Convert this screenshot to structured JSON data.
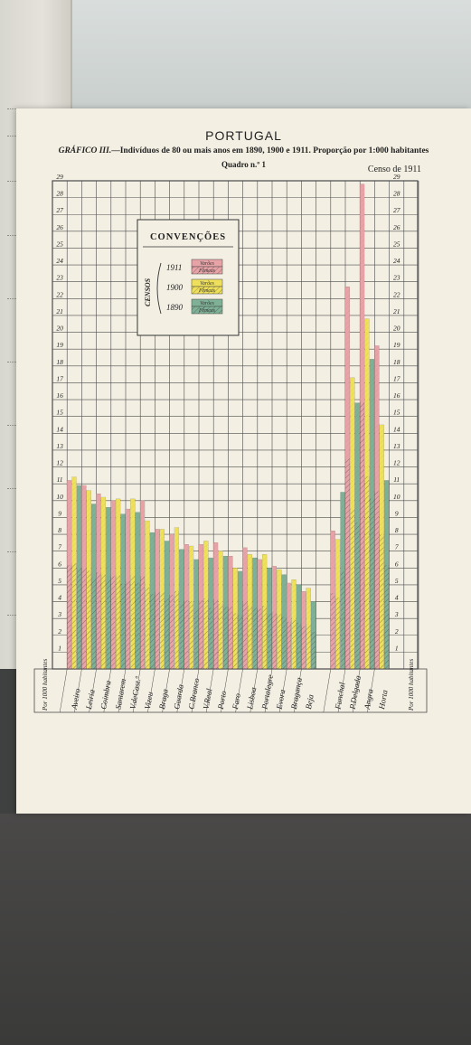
{
  "page": {
    "title": "PORTUGAL",
    "subtitle_prefix": "GRÁFICO III.",
    "subtitle_text": "—Indivíduos de 80 ou mais anos em 1890, 1900 e 1911. Proporção por 1:000 habitantes",
    "quadro": "Quadro n.º 1",
    "censo": "Censo de 1911"
  },
  "colors": {
    "c1911": "#e8a3a7",
    "c1900": "#eee05a",
    "c1890": "#7fb197",
    "grid": "#4c4c4c",
    "paper": "#f3efe3"
  },
  "chart_data": {
    "type": "bar",
    "ylim": [
      0,
      29
    ],
    "y_ticks": [
      "1",
      "2",
      "3",
      "4",
      "5",
      "6",
      "7",
      "8",
      "9",
      "10",
      "11",
      "12",
      "13",
      "14",
      "15",
      "16",
      "17",
      "18",
      "19",
      "20",
      "21",
      "22",
      "23",
      "24",
      "25",
      "26",
      "27",
      "28",
      "29"
    ],
    "left_axis_label": "Por 1000 habitantes",
    "right_axis_label": "Por 1000 habitantes",
    "legend": {
      "title": "CONVENÇÕES",
      "group_label": "CENSOS",
      "entries": [
        {
          "year": "1911",
          "line1": "Varões",
          "line2": "Fêmeas"
        },
        {
          "year": "1900",
          "line1": "Varões",
          "line2": "Fêmeas"
        },
        {
          "year": "1890",
          "line1": "Varões",
          "line2": "Fêmeas"
        }
      ]
    },
    "categories": [
      "Aveiro",
      "Leiria",
      "Coimbra",
      "Santarem",
      "V.deCast.º",
      "Vizeu",
      "Braga",
      "Guarda",
      "C.Branco",
      "V.Real",
      "Porto",
      "Faro",
      "Lisboa",
      "Portalegre",
      "Evora",
      "Bragança",
      "Beja",
      "Funchal",
      "P.Delgada",
      "Angra",
      "Horta"
    ],
    "series": [
      {
        "name": "1911",
        "values": [
          11.2,
          10.9,
          10.4,
          10.0,
          9.5,
          10.0,
          8.3,
          8.0,
          7.4,
          7.4,
          7.5,
          6.7,
          7.2,
          6.5,
          6.1,
          5.1,
          4.6,
          8.2,
          22.7,
          28.8,
          19.2
        ]
      },
      {
        "name": "1900",
        "values": [
          11.4,
          10.6,
          10.2,
          10.1,
          10.1,
          8.8,
          8.3,
          8.4,
          7.3,
          7.6,
          7.0,
          6.0,
          6.8,
          6.8,
          5.9,
          5.3,
          4.8,
          7.7,
          17.3,
          20.8,
          14.5
        ]
      },
      {
        "name": "1890",
        "values": [
          10.9,
          9.8,
          9.6,
          9.2,
          9.3,
          8.1,
          7.6,
          7.1,
          6.5,
          6.6,
          6.7,
          5.8,
          6.6,
          6.0,
          5.6,
          5.0,
          4.0,
          10.5,
          15.8,
          18.4,
          11.2
        ]
      }
    ]
  }
}
